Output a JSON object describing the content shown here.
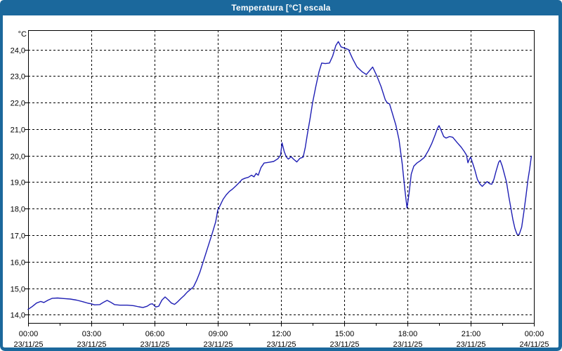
{
  "window": {
    "title": "Temperatura [°C] escala"
  },
  "colors": {
    "titlebar": "#1b689c",
    "frame": "#1b689c",
    "line": "#1e1eb4",
    "grid": "#000000",
    "text": "#000000",
    "background": "#ffffff"
  },
  "chart_data": {
    "type": "line",
    "title": "Temperatura [°C] escala",
    "ylabel": "°C",
    "xlabel": "",
    "xlim": [
      0,
      24
    ],
    "ylim": [
      13.69,
      24.73
    ],
    "grid": "dashed",
    "legend": "none",
    "y_ticks": [
      {
        "value": 24,
        "label": "24,0"
      },
      {
        "value": 23,
        "label": "23,0"
      },
      {
        "value": 22,
        "label": "22,0"
      },
      {
        "value": 21,
        "label": "21,0"
      },
      {
        "value": 20,
        "label": "20,0"
      },
      {
        "value": 19,
        "label": "19,0"
      },
      {
        "value": 18,
        "label": "18,0"
      },
      {
        "value": 17,
        "label": "17,0"
      },
      {
        "value": 16,
        "label": "16,0"
      },
      {
        "value": 15,
        "label": "15,0"
      },
      {
        "value": 14,
        "label": "14,0"
      }
    ],
    "x_ticks": [
      {
        "value": 0,
        "time": "00:00",
        "date": "23/11/25"
      },
      {
        "value": 3,
        "time": "03:00",
        "date": "23/11/25"
      },
      {
        "value": 6,
        "time": "06:00",
        "date": "23/11/25"
      },
      {
        "value": 9,
        "time": "09:00",
        "date": "23/11/25"
      },
      {
        "value": 12,
        "time": "12:00",
        "date": "23/11/25"
      },
      {
        "value": 15,
        "time": "15:00",
        "date": "23/11/25"
      },
      {
        "value": 18,
        "time": "18:00",
        "date": "23/11/25"
      },
      {
        "value": 21,
        "time": "21:00",
        "date": "23/11/25"
      },
      {
        "value": 24,
        "time": "00:00",
        "date": "24/11/25"
      }
    ],
    "x_minor_ticks": [
      1.5,
      4.5,
      7.5,
      10.5,
      13.5,
      16.5,
      19.5,
      22.5
    ],
    "series": [
      {
        "name": "Temperatura",
        "points": [
          [
            0.0,
            14.2
          ],
          [
            0.2,
            14.31
          ],
          [
            0.4,
            14.44
          ],
          [
            0.6,
            14.5
          ],
          [
            0.75,
            14.46
          ],
          [
            0.95,
            14.55
          ],
          [
            1.15,
            14.62
          ],
          [
            1.4,
            14.63
          ],
          [
            1.7,
            14.61
          ],
          [
            2.0,
            14.59
          ],
          [
            2.3,
            14.55
          ],
          [
            2.6,
            14.49
          ],
          [
            2.85,
            14.43
          ],
          [
            3.0,
            14.41
          ],
          [
            3.15,
            14.37
          ],
          [
            3.4,
            14.38
          ],
          [
            3.6,
            14.48
          ],
          [
            3.75,
            14.54
          ],
          [
            3.9,
            14.48
          ],
          [
            4.1,
            14.38
          ],
          [
            4.35,
            14.36
          ],
          [
            4.7,
            14.36
          ],
          [
            5.0,
            14.34
          ],
          [
            5.25,
            14.3
          ],
          [
            5.45,
            14.27
          ],
          [
            5.65,
            14.32
          ],
          [
            5.8,
            14.4
          ],
          [
            5.9,
            14.41
          ],
          [
            6.05,
            14.29
          ],
          [
            6.2,
            14.32
          ],
          [
            6.35,
            14.55
          ],
          [
            6.5,
            14.67
          ],
          [
            6.65,
            14.56
          ],
          [
            6.8,
            14.44
          ],
          [
            6.95,
            14.39
          ],
          [
            7.1,
            14.49
          ],
          [
            7.25,
            14.61
          ],
          [
            7.4,
            14.72
          ],
          [
            7.55,
            14.85
          ],
          [
            7.7,
            14.95
          ],
          [
            7.85,
            15.05
          ],
          [
            8.0,
            15.3
          ],
          [
            8.15,
            15.6
          ],
          [
            8.35,
            16.1
          ],
          [
            8.55,
            16.6
          ],
          [
            8.75,
            17.1
          ],
          [
            8.9,
            17.5
          ],
          [
            9.0,
            17.95
          ],
          [
            9.1,
            18.1
          ],
          [
            9.25,
            18.35
          ],
          [
            9.4,
            18.52
          ],
          [
            9.55,
            18.65
          ],
          [
            9.7,
            18.74
          ],
          [
            9.85,
            18.85
          ],
          [
            10.0,
            18.97
          ],
          [
            10.15,
            19.1
          ],
          [
            10.3,
            19.15
          ],
          [
            10.45,
            19.18
          ],
          [
            10.6,
            19.26
          ],
          [
            10.72,
            19.2
          ],
          [
            10.82,
            19.33
          ],
          [
            10.92,
            19.26
          ],
          [
            11.05,
            19.55
          ],
          [
            11.2,
            19.72
          ],
          [
            11.45,
            19.75
          ],
          [
            11.65,
            19.78
          ],
          [
            11.85,
            19.88
          ],
          [
            11.98,
            20.02
          ],
          [
            12.05,
            20.48
          ],
          [
            12.15,
            20.16
          ],
          [
            12.25,
            19.95
          ],
          [
            12.35,
            19.87
          ],
          [
            12.48,
            19.96
          ],
          [
            12.6,
            19.86
          ],
          [
            12.75,
            19.76
          ],
          [
            12.9,
            19.9
          ],
          [
            13.05,
            19.94
          ],
          [
            13.15,
            20.3
          ],
          [
            13.25,
            20.8
          ],
          [
            13.38,
            21.4
          ],
          [
            13.5,
            22.0
          ],
          [
            13.65,
            22.6
          ],
          [
            13.8,
            23.15
          ],
          [
            13.93,
            23.49
          ],
          [
            14.1,
            23.47
          ],
          [
            14.3,
            23.49
          ],
          [
            14.45,
            23.75
          ],
          [
            14.6,
            24.15
          ],
          [
            14.72,
            24.3
          ],
          [
            14.85,
            24.1
          ],
          [
            15.0,
            24.06
          ],
          [
            15.2,
            24.0
          ],
          [
            15.4,
            23.65
          ],
          [
            15.6,
            23.35
          ],
          [
            15.85,
            23.16
          ],
          [
            16.05,
            23.06
          ],
          [
            16.2,
            23.2
          ],
          [
            16.35,
            23.34
          ],
          [
            16.55,
            23.0
          ],
          [
            16.75,
            22.6
          ],
          [
            16.95,
            22.1
          ],
          [
            17.05,
            21.98
          ],
          [
            17.15,
            21.95
          ],
          [
            17.3,
            21.55
          ],
          [
            17.45,
            21.15
          ],
          [
            17.6,
            20.6
          ],
          [
            17.75,
            19.7
          ],
          [
            17.88,
            18.7
          ],
          [
            17.98,
            18.02
          ],
          [
            18.08,
            18.6
          ],
          [
            18.18,
            19.3
          ],
          [
            18.3,
            19.6
          ],
          [
            18.45,
            19.72
          ],
          [
            18.6,
            19.8
          ],
          [
            18.8,
            19.93
          ],
          [
            19.0,
            20.2
          ],
          [
            19.15,
            20.45
          ],
          [
            19.3,
            20.75
          ],
          [
            19.42,
            21.02
          ],
          [
            19.5,
            21.13
          ],
          [
            19.6,
            20.95
          ],
          [
            19.72,
            20.72
          ],
          [
            19.83,
            20.66
          ],
          [
            20.0,
            20.72
          ],
          [
            20.15,
            20.69
          ],
          [
            20.35,
            20.5
          ],
          [
            20.55,
            20.32
          ],
          [
            20.7,
            20.15
          ],
          [
            20.8,
            20.02
          ],
          [
            20.87,
            19.73
          ],
          [
            20.93,
            19.85
          ],
          [
            21.0,
            19.94
          ],
          [
            21.1,
            19.7
          ],
          [
            21.2,
            19.45
          ],
          [
            21.32,
            19.1
          ],
          [
            21.45,
            18.92
          ],
          [
            21.55,
            18.84
          ],
          [
            21.67,
            18.94
          ],
          [
            21.78,
            19.02
          ],
          [
            21.9,
            18.94
          ],
          [
            22.0,
            18.92
          ],
          [
            22.1,
            19.1
          ],
          [
            22.2,
            19.4
          ],
          [
            22.33,
            19.75
          ],
          [
            22.4,
            19.82
          ],
          [
            22.5,
            19.6
          ],
          [
            22.6,
            19.3
          ],
          [
            22.7,
            19.0
          ],
          [
            22.8,
            18.5
          ],
          [
            22.9,
            18.05
          ],
          [
            23.0,
            17.6
          ],
          [
            23.1,
            17.25
          ],
          [
            23.2,
            17.03
          ],
          [
            23.3,
            17.02
          ],
          [
            23.42,
            17.3
          ],
          [
            23.52,
            17.85
          ],
          [
            23.62,
            18.45
          ],
          [
            23.72,
            19.1
          ],
          [
            23.8,
            19.5
          ],
          [
            23.88,
            19.98
          ]
        ]
      }
    ]
  }
}
